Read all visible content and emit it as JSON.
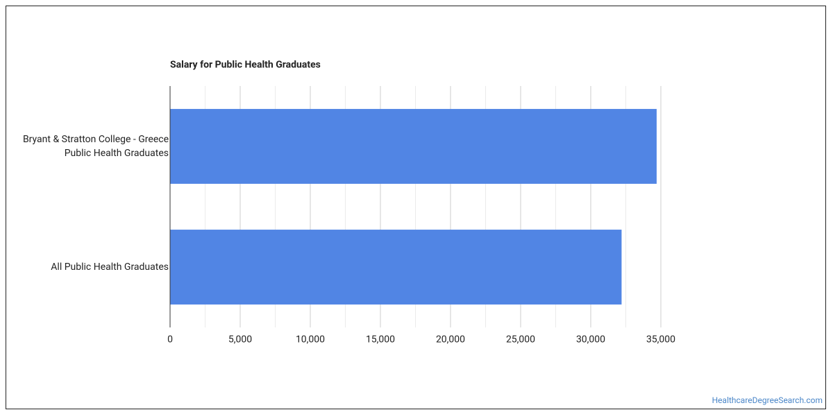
{
  "chart_data": {
    "type": "hbar",
    "title": "Salary for Public Health Graduates",
    "categories": [
      "Bryant & Stratton College - Greece Public Health Graduates",
      "All Public Health Graduates"
    ],
    "values": [
      34700,
      32200
    ],
    "color": "#5185e4",
    "xlim": [
      0,
      35000
    ],
    "xticks": [
      0,
      {
        "value": 5000,
        "label": "5,000"
      },
      {
        "value": 10000,
        "label": "10,000"
      },
      {
        "value": 15000,
        "label": "15,000"
      },
      {
        "value": 20000,
        "label": "20,000"
      },
      {
        "value": 25000,
        "label": "25,000"
      },
      {
        "value": 30000,
        "label": "30,000"
      },
      {
        "value": 35000,
        "label": "35,000"
      }
    ],
    "xminorticks": [
      2500,
      7500,
      12500,
      17500,
      22500,
      27500,
      32500
    ],
    "grid": true,
    "source": "HealthcareDegreeSearch.com"
  }
}
